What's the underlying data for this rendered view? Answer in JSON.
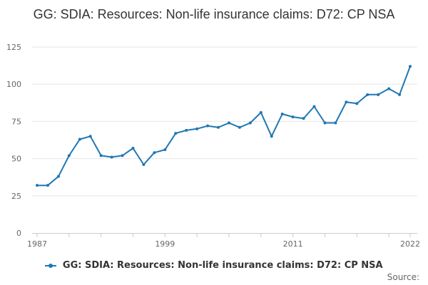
{
  "chart_data": {
    "type": "line",
    "title": "GG: SDIA: Resources: Non-life insurance claims: D72: CP NSA",
    "xlabel": "",
    "ylabel": "",
    "xlim": [
      1987,
      2022
    ],
    "ylim": [
      0,
      125
    ],
    "x_ticks": [
      "1987",
      "1999",
      "2011",
      "2022"
    ],
    "y_ticks": [
      "0",
      "25",
      "50",
      "75",
      "100",
      "125"
    ],
    "grid": true,
    "legend_position": "bottom",
    "x": [
      1987,
      1988,
      1989,
      1990,
      1991,
      1992,
      1993,
      1994,
      1995,
      1996,
      1997,
      1998,
      1999,
      2000,
      2001,
      2002,
      2003,
      2004,
      2005,
      2006,
      2007,
      2008,
      2009,
      2010,
      2011,
      2012,
      2013,
      2014,
      2015,
      2016,
      2017,
      2018,
      2019,
      2020,
      2021,
      2022
    ],
    "series": [
      {
        "name": "GG: SDIA: Resources: Non-life insurance claims: D72: CP NSA",
        "color": "#1f77b4",
        "values": [
          32,
          32,
          38,
          52,
          63,
          65,
          52,
          51,
          52,
          57,
          46,
          54,
          56,
          67,
          69,
          70,
          72,
          71,
          74,
          71,
          74,
          81,
          65,
          80,
          78,
          77,
          85,
          74,
          74,
          88,
          87,
          93,
          93,
          97,
          93,
          112
        ]
      }
    ]
  },
  "source_label": "Source:"
}
